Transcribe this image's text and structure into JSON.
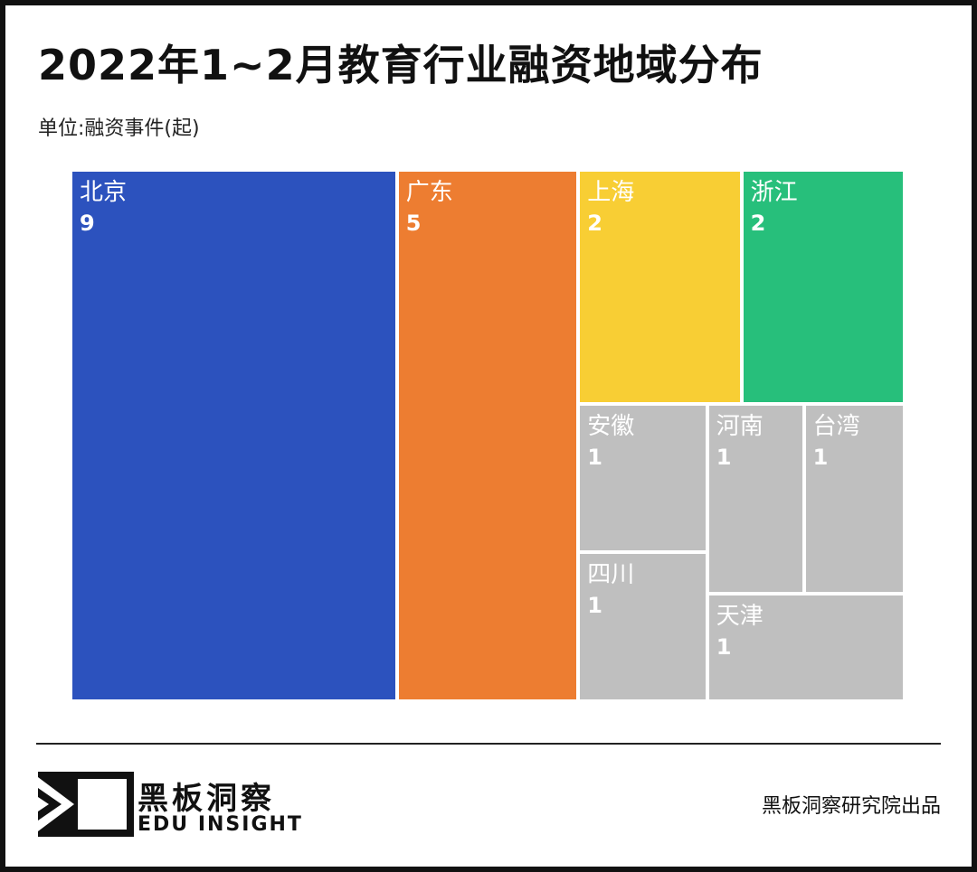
{
  "header": {
    "title": "2022年1~2月教育行业融资地域分布",
    "unit": "单位:融资事件(起)"
  },
  "chart_data": {
    "type": "treemap",
    "title": "2022年1~2月教育行业融资地域分布",
    "unit_label": "单位:融资事件(起)",
    "items": [
      {
        "name": "北京",
        "value": 9,
        "color": "#2c52be"
      },
      {
        "name": "广东",
        "value": 5,
        "color": "#ed7d31"
      },
      {
        "name": "上海",
        "value": 2,
        "color": "#f8ce34"
      },
      {
        "name": "浙江",
        "value": 2,
        "color": "#27bf7b"
      },
      {
        "name": "安徽",
        "value": 1,
        "color": "#bfbfbf"
      },
      {
        "name": "河南",
        "value": 1,
        "color": "#bfbfbf"
      },
      {
        "name": "台湾",
        "value": 1,
        "color": "#bfbfbf"
      },
      {
        "name": "四川",
        "value": 1,
        "color": "#bfbfbf"
      },
      {
        "name": "天津",
        "value": 1,
        "color": "#bfbfbf"
      }
    ]
  },
  "footer": {
    "brand_cn": "黑板洞察",
    "brand_en": "EDU INSIGHT",
    "credit": "黑板洞察研究院出品"
  }
}
